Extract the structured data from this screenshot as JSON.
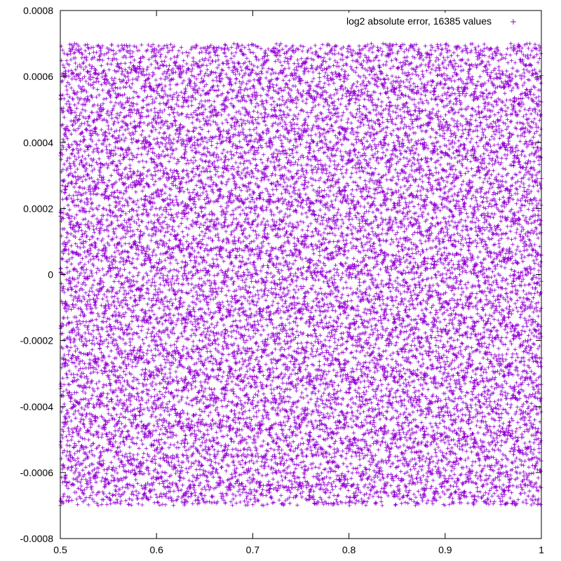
{
  "chart_data": {
    "type": "scatter",
    "title": "",
    "xlabel": "",
    "ylabel": "",
    "xlim": [
      0.5,
      1.0
    ],
    "ylim": [
      -0.0008,
      0.0008
    ],
    "x_ticks": [
      {
        "value": 0.5,
        "label": "0.5"
      },
      {
        "value": 0.6,
        "label": "0.6"
      },
      {
        "value": 0.7,
        "label": "0.7"
      },
      {
        "value": 0.8,
        "label": "0.8"
      },
      {
        "value": 0.9,
        "label": "0.9"
      },
      {
        "value": 1.0,
        "label": "1"
      }
    ],
    "y_ticks": [
      {
        "value": 0.0008,
        "label": "0.0008"
      },
      {
        "value": 0.0006,
        "label": "0.0006"
      },
      {
        "value": 0.0004,
        "label": "0.0004"
      },
      {
        "value": 0.0002,
        "label": "0.0002"
      },
      {
        "value": 0,
        "label": "0"
      },
      {
        "value": -0.0002,
        "label": "-0.0002"
      },
      {
        "value": -0.0004,
        "label": "-0.0004"
      },
      {
        "value": -0.0006,
        "label": "-0.0006"
      },
      {
        "value": -0.0008,
        "label": "-0.0008"
      }
    ],
    "grid": false,
    "legend_position": "top-right",
    "marker": "plus",
    "series": [
      {
        "name": "log2 absolute error, 16385 values",
        "color": "#9400d3",
        "point_count": 16385,
        "x_range": [
          0.5,
          1.0
        ],
        "y_range": [
          -0.0007,
          0.0007
        ]
      }
    ]
  }
}
